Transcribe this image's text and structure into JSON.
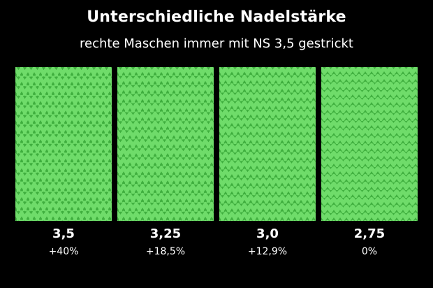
{
  "title": "Unterschiedliche Nadelstärke",
  "subtitle": "rechte Maschen immer mit NS 3,5 gestrickt",
  "colors": {
    "background": "#000000",
    "yarn": "#6fdc6a",
    "yarn_dark": "#3fae3e",
    "text": "#ffffff"
  },
  "samples": [
    {
      "needle": "3,5",
      "percent": "+40%",
      "rows": 16
    },
    {
      "needle": "3,25",
      "percent": "+18,5%",
      "rows": 17
    },
    {
      "needle": "3,0",
      "percent": "+12,9%",
      "rows": 18
    },
    {
      "needle": "2,75",
      "percent": "0%",
      "rows": 20
    }
  ]
}
